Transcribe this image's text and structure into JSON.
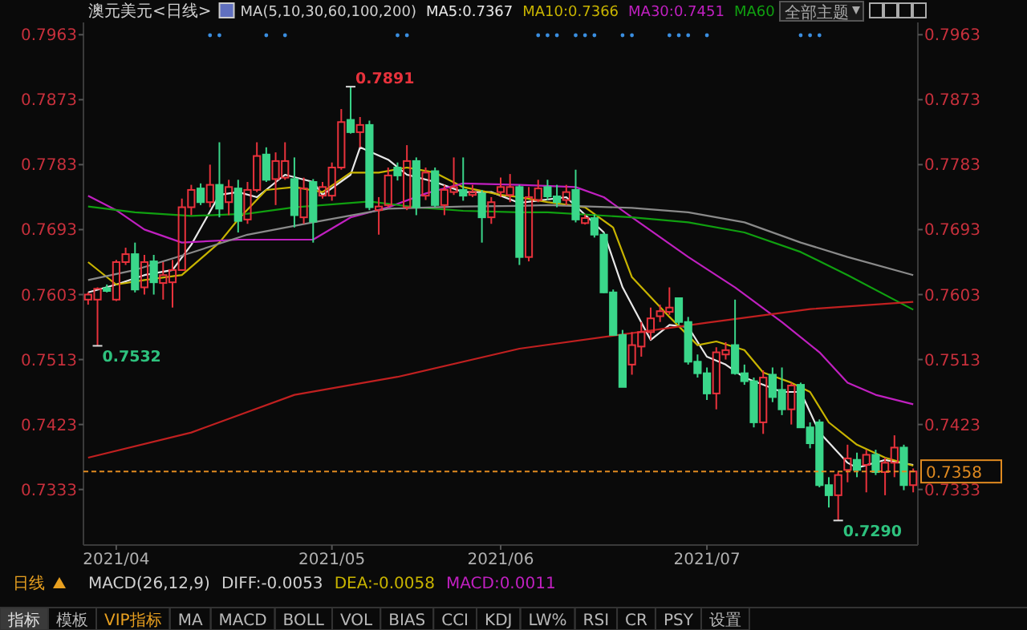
{
  "chart_data": {
    "type": "candlestick",
    "title": "澳元美元<日线>",
    "legend_title": "MA(5,10,30,60,100,200)",
    "legend": "top",
    "grid": false,
    "categories": [
      null,
      null,
      null,
      "2021/04",
      null,
      null,
      null,
      null,
      null,
      null,
      null,
      null,
      null,
      null,
      null,
      null,
      null,
      null,
      null,
      null,
      null,
      null,
      null,
      null,
      null,
      null,
      "2021/05",
      null,
      null,
      null,
      null,
      null,
      null,
      null,
      null,
      null,
      null,
      null,
      null,
      null,
      null,
      null,
      null,
      null,
      "2021/06",
      null,
      null,
      null,
      null,
      null,
      null,
      null,
      null,
      null,
      null,
      null,
      null,
      null,
      null,
      null,
      null,
      null,
      null,
      null,
      null,
      null,
      "2021/07",
      null,
      null,
      null,
      null,
      null,
      null,
      null,
      null,
      null,
      null,
      null,
      null,
      null,
      null,
      null,
      null,
      null,
      null,
      null,
      null,
      null,
      null
    ],
    "ohlc": [
      [
        0.7596,
        0.7606,
        0.7589,
        0.7603
      ],
      [
        0.7596,
        0.7613,
        0.7532,
        0.7611
      ],
      [
        0.7612,
        0.7617,
        0.7606,
        0.7608
      ],
      [
        0.7596,
        0.7651,
        0.7594,
        0.7648
      ],
      [
        0.7648,
        0.7668,
        0.7644,
        0.7659
      ],
      [
        0.7659,
        0.7675,
        0.7606,
        0.761
      ],
      [
        0.7613,
        0.7658,
        0.7603,
        0.7648
      ],
      [
        0.7649,
        0.7658,
        0.7603,
        0.762
      ],
      [
        0.7619,
        0.7648,
        0.7596,
        0.763
      ],
      [
        0.762,
        0.7651,
        0.7585,
        0.7637
      ],
      [
        0.7637,
        0.7736,
        0.7636,
        0.7724
      ],
      [
        0.7724,
        0.7755,
        0.7713,
        0.7748
      ],
      [
        0.775,
        0.7757,
        0.7727,
        0.7731
      ],
      [
        0.7731,
        0.7783,
        0.7724,
        0.7755
      ],
      [
        0.7755,
        0.7814,
        0.771,
        0.7722
      ],
      [
        0.7731,
        0.7762,
        0.7713,
        0.7752
      ],
      [
        0.775,
        0.7762,
        0.7689,
        0.7705
      ],
      [
        0.7707,
        0.7759,
        0.7701,
        0.7748
      ],
      [
        0.7748,
        0.7814,
        0.7745,
        0.7795
      ],
      [
        0.7797,
        0.7807,
        0.7759,
        0.7762
      ],
      [
        0.7763,
        0.78,
        0.7727,
        0.7788
      ],
      [
        0.7765,
        0.7814,
        0.7762,
        0.7788
      ],
      [
        0.7763,
        0.7793,
        0.7696,
        0.7713
      ],
      [
        0.771,
        0.7765,
        0.7701,
        0.775
      ],
      [
        0.7759,
        0.7763,
        0.7675,
        0.7704
      ],
      [
        0.774,
        0.7759,
        0.7736,
        0.7752
      ],
      [
        0.774,
        0.7786,
        0.7733,
        0.7779
      ],
      [
        0.7779,
        0.786,
        0.7776,
        0.7842
      ],
      [
        0.7845,
        0.7891,
        0.7826,
        0.7828
      ],
      [
        0.7828,
        0.7849,
        0.7807,
        0.7838
      ],
      [
        0.7838,
        0.7844,
        0.772,
        0.7724
      ],
      [
        0.772,
        0.7738,
        0.7686,
        0.7725
      ],
      [
        0.7727,
        0.7779,
        0.7724,
        0.7768
      ],
      [
        0.7779,
        0.7786,
        0.7761,
        0.7768
      ],
      [
        0.7724,
        0.781,
        0.772,
        0.7788
      ],
      [
        0.7788,
        0.7793,
        0.7713,
        0.7724
      ],
      [
        0.774,
        0.7779,
        0.7734,
        0.7772
      ],
      [
        0.7774,
        0.7779,
        0.7724,
        0.7727
      ],
      [
        0.7727,
        0.7755,
        0.7713,
        0.7748
      ],
      [
        0.7745,
        0.7793,
        0.7741,
        0.7752
      ],
      [
        0.7748,
        0.7793,
        0.7733,
        0.774
      ],
      [
        0.7741,
        0.7755,
        0.7738,
        0.7745
      ],
      [
        0.7743,
        0.7748,
        0.7675,
        0.771
      ],
      [
        0.771,
        0.7738,
        0.7701,
        0.7731
      ],
      [
        0.7745,
        0.7765,
        0.7738,
        0.7752
      ],
      [
        0.7741,
        0.777,
        0.7731,
        0.7752
      ],
      [
        0.7752,
        0.7755,
        0.7644,
        0.7655
      ],
      [
        0.7655,
        0.7752,
        0.7649,
        0.7738
      ],
      [
        0.7734,
        0.7762,
        0.7731,
        0.775
      ],
      [
        0.7752,
        0.7762,
        0.7734,
        0.7739
      ],
      [
        0.7739,
        0.7755,
        0.7724,
        0.7731
      ],
      [
        0.7734,
        0.7755,
        0.7727,
        0.7745
      ],
      [
        0.7748,
        0.7776,
        0.7703,
        0.7707
      ],
      [
        0.7702,
        0.7714,
        0.77,
        0.7709
      ],
      [
        0.7709,
        0.7714,
        0.7682,
        0.7686
      ],
      [
        0.7686,
        0.7689,
        0.7605,
        0.7606
      ],
      [
        0.7606,
        0.761,
        0.7547,
        0.7547
      ],
      [
        0.7547,
        0.7554,
        0.7475,
        0.7475
      ],
      [
        0.7506,
        0.7551,
        0.7492,
        0.7533
      ],
      [
        0.7531,
        0.7565,
        0.7517,
        0.7551
      ],
      [
        0.7551,
        0.7585,
        0.754,
        0.757
      ],
      [
        0.7573,
        0.7589,
        0.7565,
        0.758
      ],
      [
        0.7579,
        0.7613,
        0.7575,
        0.7585
      ],
      [
        0.7598,
        0.7599,
        0.7561,
        0.7565
      ],
      [
        0.7565,
        0.7572,
        0.7506,
        0.751
      ],
      [
        0.751,
        0.752,
        0.7488,
        0.7494
      ],
      [
        0.7494,
        0.7502,
        0.7457,
        0.7466
      ],
      [
        0.7466,
        0.753,
        0.7444,
        0.7523
      ],
      [
        0.752,
        0.7537,
        0.7513,
        0.7526
      ],
      [
        0.7533,
        0.7596,
        0.7492,
        0.7494
      ],
      [
        0.7494,
        0.7506,
        0.7478,
        0.7483
      ],
      [
        0.7483,
        0.7488,
        0.7419,
        0.7426
      ],
      [
        0.7426,
        0.7498,
        0.741,
        0.7488
      ],
      [
        0.7492,
        0.7502,
        0.7454,
        0.7461
      ],
      [
        0.7471,
        0.7502,
        0.7436,
        0.7444
      ],
      [
        0.7444,
        0.7481,
        0.7423,
        0.7477
      ],
      [
        0.7478,
        0.7481,
        0.7419,
        0.7419
      ],
      [
        0.7419,
        0.7426,
        0.739,
        0.7397
      ],
      [
        0.7426,
        0.743,
        0.7336,
        0.7339
      ],
      [
        0.7339,
        0.735,
        0.7308,
        0.7325
      ],
      [
        0.7325,
        0.7357,
        0.729,
        0.7353
      ],
      [
        0.736,
        0.7395,
        0.7343,
        0.7376
      ],
      [
        0.7374,
        0.7384,
        0.735,
        0.736
      ],
      [
        0.7367,
        0.7388,
        0.7329,
        0.7381
      ],
      [
        0.7381,
        0.7388,
        0.7353,
        0.7357
      ],
      [
        0.7357,
        0.7377,
        0.7325,
        0.737
      ],
      [
        0.737,
        0.7408,
        0.735,
        0.7391
      ],
      [
        0.7391,
        0.7395,
        0.7332,
        0.7339
      ],
      [
        0.7339,
        0.7362,
        0.7329,
        0.7358
      ]
    ],
    "series": [
      {
        "type": "line",
        "name": "MA5:0.7367",
        "color": "#e8e8e8",
        "values": [
          0.7606,
          null,
          null,
          0.7617,
          null,
          null,
          0.763,
          null,
          null,
          0.7637,
          null,
          0.7672,
          null,
          null,
          0.7741,
          null,
          0.7745,
          null,
          0.7738,
          null,
          null,
          0.7769,
          null,
          null,
          0.7759,
          0.7741,
          null,
          null,
          0.7769,
          0.7807,
          null,
          null,
          0.779,
          null,
          0.7769,
          null,
          null,
          0.7759,
          null,
          null,
          0.7745,
          null,
          null,
          0.7745,
          null,
          null,
          0.773,
          null,
          null,
          null,
          null,
          0.7738,
          null,
          null,
          null,
          0.7689,
          null,
          0.7613,
          null,
          null,
          0.754,
          null,
          0.7561,
          null,
          0.7558,
          null,
          0.7517,
          null,
          0.7506,
          null,
          0.7488,
          null,
          null,
          null,
          0.7468,
          null,
          0.7468,
          null,
          0.7412,
          null,
          null,
          0.737,
          0.7363,
          null,
          null,
          0.7374,
          null,
          null,
          0.7367
        ]
      },
      {
        "type": "line",
        "name": "MA10:0.7366",
        "color": "#c8b400",
        "values": [
          0.7648,
          null,
          null,
          0.7617,
          null,
          null,
          0.7623,
          null,
          null,
          null,
          0.763,
          null,
          null,
          null,
          0.7675,
          null,
          0.7707,
          null,
          null,
          0.7748,
          null,
          null,
          0.7752,
          null,
          null,
          0.7745,
          null,
          null,
          0.7772,
          null,
          null,
          0.7772,
          null,
          null,
          0.7779,
          null,
          null,
          0.7772,
          null,
          null,
          0.7752,
          null,
          null,
          null,
          0.7741,
          null,
          0.7738,
          null,
          null,
          0.7731,
          null,
          null,
          null,
          0.7724,
          null,
          null,
          0.7696,
          null,
          0.7627,
          null,
          null,
          null,
          0.7572,
          null,
          null,
          0.7533,
          null,
          0.7538,
          null,
          null,
          0.7526,
          null,
          0.7495,
          null,
          null,
          0.7481,
          null,
          0.7468,
          null,
          0.7426,
          null,
          null,
          0.7395,
          null,
          null,
          0.7377,
          null,
          null,
          0.7366
        ]
      },
      {
        "type": "line",
        "name": "MA30:0.7451",
        "color": "#c020c0",
        "values": [
          0.774,
          null,
          null,
          0.772,
          null,
          null,
          0.7693,
          null,
          null,
          null,
          0.7675,
          null,
          null,
          null,
          null,
          null,
          0.7679,
          null,
          null,
          null,
          null,
          null,
          null,
          null,
          0.7679,
          null,
          null,
          null,
          0.771,
          null,
          null,
          null,
          0.7724,
          null,
          null,
          null,
          0.7743,
          null,
          null,
          null,
          0.7757,
          null,
          null,
          null,
          null,
          null,
          0.7755,
          null,
          null,
          null,
          null,
          null,
          0.7752,
          null,
          null,
          0.7738,
          null,
          null,
          0.771,
          null,
          null,
          null,
          null,
          null,
          0.7655,
          null,
          null,
          null,
          null,
          0.7613,
          null,
          null,
          null,
          null,
          0.7565,
          null,
          null,
          null,
          0.7523,
          null,
          null,
          0.7481,
          null,
          null,
          0.7464,
          null,
          null,
          null,
          0.7451
        ]
      },
      {
        "type": "line",
        "name": "MA60",
        "color": "#10a010",
        "values": [
          0.7725,
          null,
          null,
          null,
          null,
          0.7717,
          null,
          null,
          null,
          null,
          null,
          0.7712,
          null,
          null,
          null,
          null,
          null,
          0.7715,
          null,
          null,
          null,
          null,
          0.7724,
          null,
          null,
          null,
          null,
          null,
          null,
          null,
          0.7732,
          null,
          null,
          null,
          null,
          0.7724,
          null,
          null,
          null,
          null,
          0.7719,
          null,
          null,
          null,
          null,
          null,
          0.7717,
          null,
          null,
          0.7717,
          null,
          null,
          null,
          null,
          null,
          null,
          null,
          null,
          0.771,
          null,
          null,
          null,
          null,
          null,
          0.7703,
          null,
          null,
          null,
          null,
          null,
          0.7689,
          null,
          null,
          null,
          null,
          null,
          0.7662,
          null,
          null,
          null,
          null,
          0.763,
          null,
          null,
          null,
          null,
          null,
          null,
          0.7582
        ]
      },
      {
        "type": "line",
        "color": "#8a8a8a",
        "values": [
          0.7623,
          null,
          null,
          null,
          null,
          0.7637,
          null,
          null,
          null,
          null,
          null,
          0.7661,
          null,
          null,
          null,
          null,
          null,
          0.7686,
          null,
          null,
          null,
          null,
          null,
          null,
          0.7703,
          null,
          null,
          null,
          null,
          null,
          null,
          null,
          0.7722,
          null,
          null,
          null,
          null,
          null,
          null,
          null,
          0.7725,
          null,
          null,
          null,
          null,
          null,
          0.7726,
          null,
          null,
          0.7727,
          null,
          null,
          null,
          null,
          null,
          null,
          null,
          null,
          0.7723,
          null,
          null,
          null,
          null,
          null,
          0.7717,
          null,
          null,
          null,
          null,
          null,
          0.7703,
          null,
          null,
          null,
          null,
          null,
          0.7675,
          null,
          null,
          null,
          null,
          0.7655,
          null,
          null,
          null,
          null,
          null,
          null,
          0.763
        ]
      },
      {
        "type": "line",
        "color": "#c02020",
        "values": [
          0.7377,
          null,
          null,
          null,
          null,
          null,
          null,
          null,
          null,
          null,
          null,
          0.7412,
          null,
          null,
          null,
          null,
          null,
          null,
          null,
          null,
          null,
          null,
          0.7464,
          null,
          null,
          null,
          null,
          null,
          null,
          null,
          null,
          null,
          null,
          0.7489,
          null,
          null,
          null,
          null,
          null,
          null,
          null,
          null,
          null,
          null,
          null,
          null,
          0.7528,
          null,
          null,
          null,
          null,
          null,
          null,
          null,
          null,
          null,
          null,
          null,
          null,
          null,
          null,
          null,
          null,
          null,
          null,
          null,
          0.7564,
          null,
          null,
          null,
          null,
          null,
          null,
          null,
          null,
          null,
          null,
          0.7583,
          null,
          null,
          null,
          null,
          null,
          null,
          null,
          null,
          null,
          null,
          0.7593
        ]
      }
    ],
    "ylim": [
      0.7256,
      0.798
    ],
    "yticks": [
      0.7333,
      0.7423,
      0.7513,
      0.7603,
      0.7693,
      0.7783,
      0.7873,
      0.7963
    ],
    "y2lim": [
      0.7256,
      0.798
    ],
    "y2ticks": [
      0.7333,
      0.7423,
      0.7513,
      0.7603,
      0.7693,
      0.7783,
      0.7873,
      0.7963
    ],
    "ref_lines": [
      {
        "axis": "y2",
        "value": 0.7358,
        "label": "0.7358",
        "color": "#e08a20",
        "line_style": "dashed"
      }
    ],
    "annotations": [
      "0.7891",
      "0.7532",
      "0.7290",
      "MACD(26,12,9)",
      "DIFF:-0.0053",
      "DEA:-0.0058",
      "MACD:0.0011",
      "日线",
      "全部主题",
      "指标",
      "模板",
      "VIP指标",
      "MA",
      "MACD",
      "BOLL",
      "VOL",
      "BIAS",
      "CCI",
      "KDJ",
      "LW%",
      "RSI",
      "CR",
      "PSY",
      "设置"
    ]
  }
}
